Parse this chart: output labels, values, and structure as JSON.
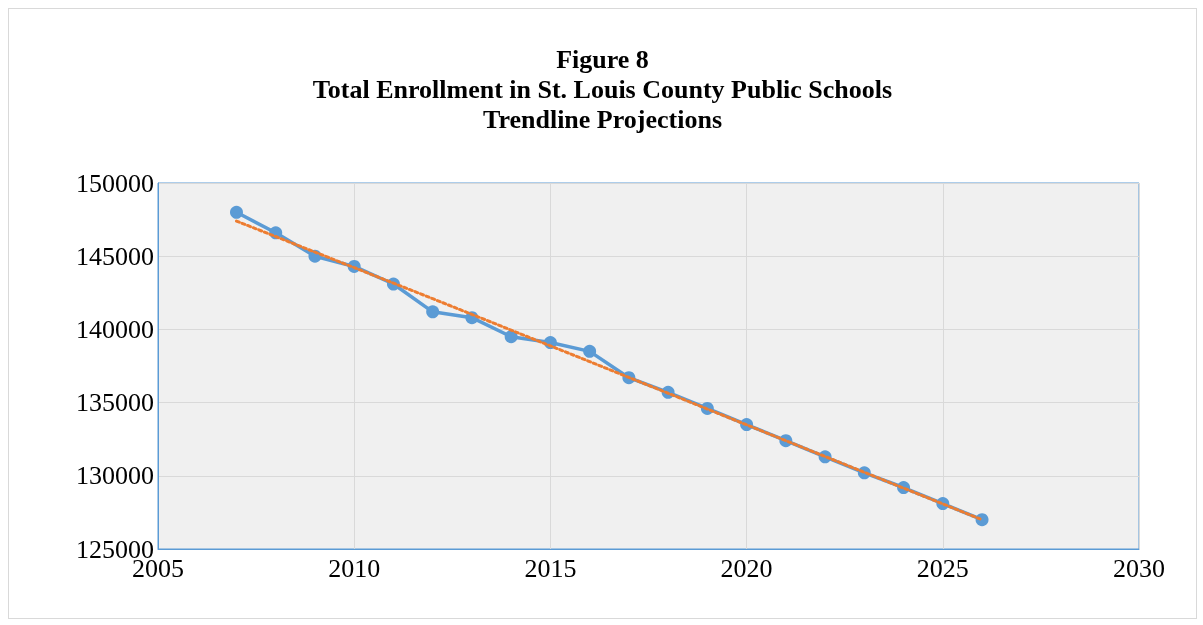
{
  "chart_data": {
    "type": "line",
    "title": "Figure 8\nTotal Enrollment in St. Louis County Public Schools\nTrendline Projections",
    "xlim": [
      2005,
      2030
    ],
    "xticks": [
      2005,
      2010,
      2015,
      2020,
      2025,
      2030
    ],
    "ylim": [
      125000,
      150000
    ],
    "yticks": [
      125000,
      130000,
      135000,
      140000,
      145000,
      150000
    ],
    "grid": true,
    "series": [
      {
        "color": "#5b9bd5",
        "marker": "circle",
        "line_style": "solid",
        "x": [
          2007,
          2008,
          2009,
          2010,
          2011,
          2012,
          2013,
          2014,
          2015,
          2016,
          2017,
          2018,
          2019,
          2020,
          2021,
          2022,
          2023,
          2024,
          2025,
          2026
        ],
        "values": [
          148000,
          146600,
          145000,
          144300,
          143100,
          141200,
          140800,
          139500,
          139100,
          138500,
          136700,
          135700,
          134600,
          133500,
          132400,
          131300,
          130200,
          129200,
          128100,
          127000
        ]
      },
      {
        "color": "#ed7d31",
        "marker": "none",
        "line_style": "dotted",
        "x": [
          2007,
          2012,
          2016,
          2026
        ],
        "values": [
          147400,
          142100,
          137800,
          127000
        ]
      }
    ]
  }
}
